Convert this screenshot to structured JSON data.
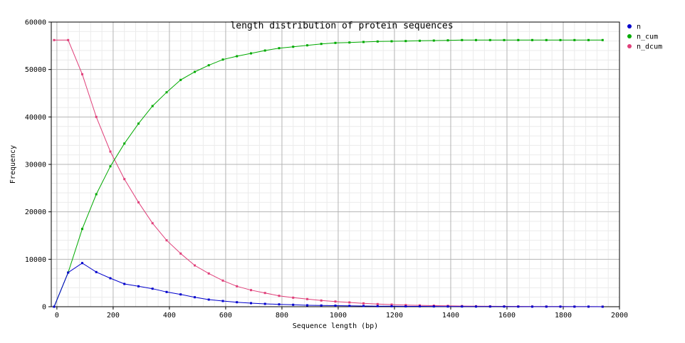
{
  "chart_data": {
    "type": "line",
    "title": "length distribution of protein sequences",
    "xlabel": "Sequence length (bp)",
    "ylabel": "Frequency",
    "xlim": [
      -20,
      2000
    ],
    "ylim": [
      0,
      60000
    ],
    "x_ticks": [
      0,
      200,
      400,
      600,
      800,
      1000,
      1200,
      1400,
      1600,
      1800,
      2000
    ],
    "y_ticks": [
      0,
      10000,
      20000,
      30000,
      40000,
      50000,
      60000
    ],
    "grid": true,
    "legend_position": "right",
    "x": [
      -10,
      40,
      90,
      140,
      190,
      240,
      290,
      340,
      390,
      440,
      490,
      540,
      590,
      640,
      690,
      740,
      790,
      840,
      890,
      940,
      990,
      1040,
      1090,
      1140,
      1190,
      1240,
      1290,
      1340,
      1390,
      1440,
      1490,
      1540,
      1590,
      1640,
      1690,
      1740,
      1790,
      1840,
      1890,
      1940
    ],
    "series": [
      {
        "name": "n",
        "color": "#0000cc",
        "values": [
          0,
          7200,
          9200,
          7300,
          6000,
          4800,
          4300,
          3800,
          3100,
          2600,
          2000,
          1500,
          1200,
          950,
          750,
          600,
          500,
          400,
          300,
          250,
          220,
          180,
          150,
          120,
          100,
          80,
          70,
          60,
          50,
          40,
          35,
          30,
          25,
          20,
          18,
          15,
          12,
          10,
          8,
          5
        ]
      },
      {
        "name": "n_cum",
        "color": "#00aa00",
        "values": [
          0,
          7200,
          16400,
          23700,
          29600,
          34400,
          38600,
          42300,
          45200,
          47800,
          49500,
          50900,
          52100,
          52800,
          53400,
          54000,
          54500,
          54800,
          55100,
          55400,
          55600,
          55700,
          55800,
          55900,
          55950,
          56000,
          56050,
          56100,
          56150,
          56200,
          56200,
          56200,
          56200,
          56200,
          56200,
          56200,
          56200,
          56200,
          56200,
          56200
        ]
      },
      {
        "name": "n_dcum",
        "color": "#e0407a",
        "values": [
          56200,
          56200,
          49000,
          40000,
          32700,
          26900,
          22000,
          17600,
          14000,
          11200,
          8700,
          7000,
          5500,
          4300,
          3500,
          2900,
          2300,
          1900,
          1600,
          1300,
          1100,
          900,
          700,
          550,
          450,
          350,
          280,
          220,
          180,
          140,
          110,
          90,
          70,
          55,
          45,
          35,
          25,
          20,
          15,
          10
        ]
      }
    ]
  }
}
